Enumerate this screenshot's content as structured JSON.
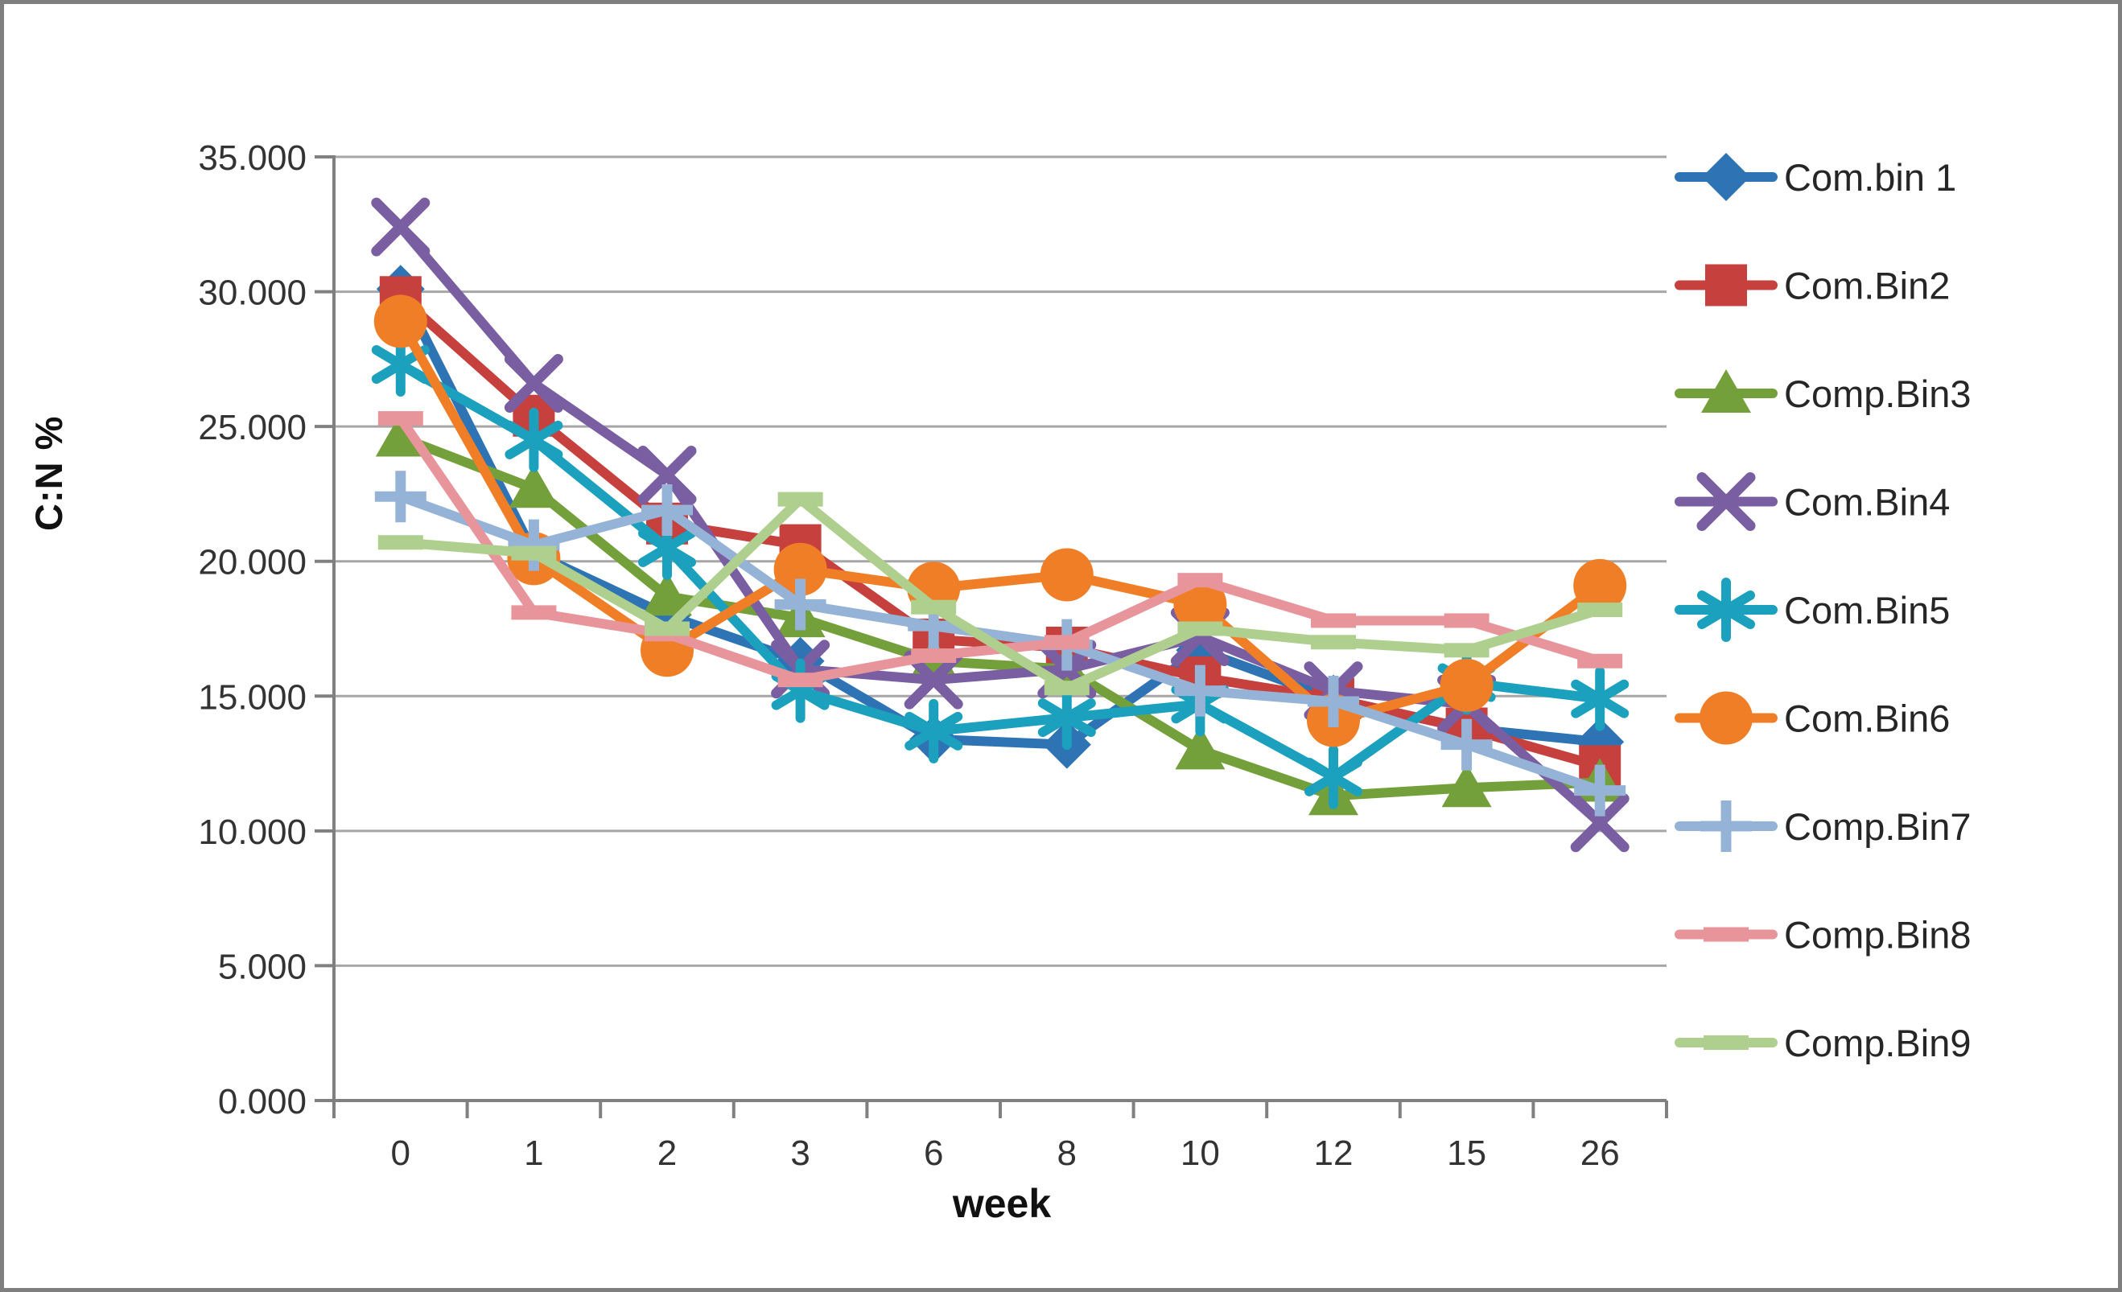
{
  "frame": {
    "background": "#ffffff",
    "border_color": "#7f7f7f"
  },
  "chart_data": {
    "type": "line",
    "title": "",
    "xlabel": "week",
    "ylabel": "C:N %",
    "categories": [
      "0",
      "1",
      "2",
      "3",
      "6",
      "8",
      "10",
      "12",
      "15",
      "26"
    ],
    "y_axis": {
      "min": 0,
      "max": 35,
      "step": 5,
      "tick_labels": [
        "0.000",
        "5.000",
        "10.000",
        "15.000",
        "20.000",
        "25.000",
        "30.000",
        "35.000"
      ]
    },
    "grid": true,
    "legend_position": "right",
    "axis_color": "#808080",
    "gridline_color": "#a6a6a6",
    "series": [
      {
        "name": "Com.bin 1",
        "color": "#2e74b5",
        "marker": "diamond",
        "values": [
          30.1,
          20.3,
          18.0,
          16.3,
          13.4,
          13.2,
          16.7,
          14.9,
          13.8,
          13.3
        ]
      },
      {
        "name": "Com.Bin2",
        "color": "#c6403e",
        "marker": "square",
        "values": [
          29.8,
          25.4,
          21.4,
          20.6,
          17.1,
          16.8,
          15.7,
          14.9,
          13.8,
          12.4
        ]
      },
      {
        "name": "Comp.Bin3",
        "color": "#74a03c",
        "marker": "triangle",
        "values": [
          24.6,
          22.7,
          18.7,
          17.9,
          16.3,
          16.0,
          13.0,
          11.3,
          11.6,
          11.8
        ]
      },
      {
        "name": "Com.Bin4",
        "color": "#7a5ea2",
        "marker": "x",
        "values": [
          32.4,
          26.6,
          23.2,
          16.0,
          15.6,
          16.0,
          17.2,
          15.2,
          14.7,
          10.3
        ]
      },
      {
        "name": "Com.Bin5",
        "color": "#1ba0be",
        "marker": "asterisk",
        "values": [
          27.3,
          24.5,
          20.5,
          15.2,
          13.7,
          14.2,
          14.7,
          12.0,
          15.5,
          14.9
        ]
      },
      {
        "name": "Com.Bin6",
        "color": "#f07e26",
        "marker": "circle",
        "values": [
          28.9,
          20.1,
          16.7,
          19.7,
          19.0,
          19.5,
          18.4,
          14.1,
          15.4,
          19.1
        ]
      },
      {
        "name": "Comp.Bin7",
        "color": "#95b3d7",
        "marker": "plus",
        "values": [
          22.4,
          20.6,
          21.9,
          18.4,
          17.6,
          16.9,
          15.2,
          14.8,
          13.2,
          11.5
        ]
      },
      {
        "name": "Comp.Bin8",
        "color": "#e8949b",
        "marker": "dash",
        "values": [
          25.3,
          18.1,
          17.3,
          15.6,
          16.5,
          17.0,
          19.3,
          17.8,
          17.8,
          16.3
        ]
      },
      {
        "name": "Comp.Bin9",
        "color": "#aecf8e",
        "marker": "dash",
        "values": [
          20.7,
          20.3,
          17.5,
          22.3,
          18.3,
          15.3,
          17.5,
          17.0,
          16.7,
          18.2
        ]
      }
    ]
  }
}
